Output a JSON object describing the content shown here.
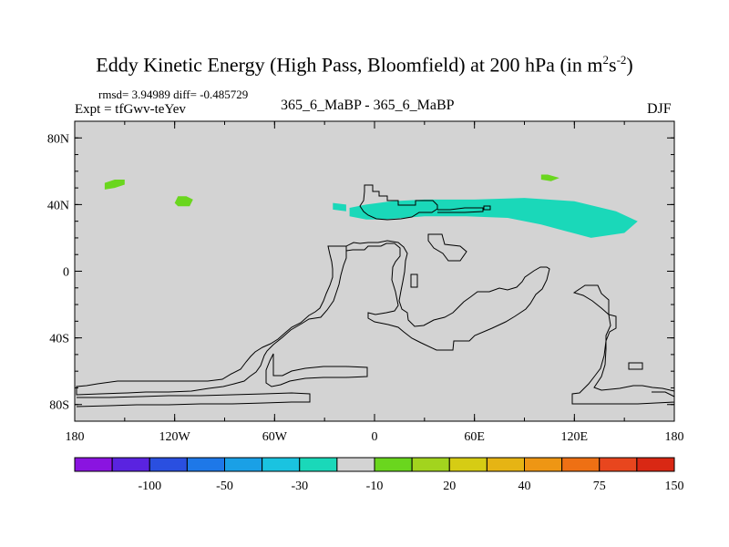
{
  "chart_data": {
    "type": "heatmap",
    "title": "Eddy Kinetic Energy (High Pass, Bloomfield) at 200 hPa (in m",
    "title_sup1": "2",
    "title_mid": "s",
    "title_sup2": "-2",
    "title_tail": ")",
    "rmsd_label": "rmsd= 3.94989 diff= -0.485729",
    "expt_label": "Expt = tfGwv-teYev",
    "case_label": "365_6_MaBP - 365_6_MaBP",
    "season": "DJF",
    "x_ticks": [
      {
        "value": -180,
        "label": "180"
      },
      {
        "value": -120,
        "label": "120W"
      },
      {
        "value": -60,
        "label": "60W"
      },
      {
        "value": 0,
        "label": "0"
      },
      {
        "value": 60,
        "label": "60E"
      },
      {
        "value": 120,
        "label": "120E"
      },
      {
        "value": 180,
        "label": "180"
      }
    ],
    "y_ticks": [
      {
        "value": 80,
        "label": "80N"
      },
      {
        "value": 40,
        "label": "40N"
      },
      {
        "value": 0,
        "label": "0"
      },
      {
        "value": -40,
        "label": "40S"
      },
      {
        "value": -80,
        "label": "80S"
      }
    ],
    "xlim": [
      -180,
      180
    ],
    "ylim": [
      -90,
      90
    ],
    "background_color": "#d3d3d3",
    "colorbar": {
      "labels": [
        "-100",
        "-50",
        "-30",
        "-10",
        "20",
        "40",
        "75",
        "150"
      ],
      "colors": [
        "#8a14e0",
        "#5a23e0",
        "#2a4fe0",
        "#1e78e8",
        "#1aa0e6",
        "#1ac3e0",
        "#1ad8b9",
        "#d3d3d3",
        "#6ad61e",
        "#a2d41e",
        "#d6cc14",
        "#e6b414",
        "#ee9614",
        "#ee7014",
        "#e8461e",
        "#d92814"
      ]
    },
    "anomalies": [
      {
        "name": "positive-small-north-pacific",
        "color": "#6ad61e",
        "points": [
          [
            -162,
            53
          ],
          [
            -156,
            55
          ],
          [
            -150,
            55
          ],
          [
            -150,
            52
          ],
          [
            -156,
            50
          ],
          [
            -162,
            49
          ]
        ]
      },
      {
        "name": "positive-small-east-pacific",
        "color": "#6ad61e",
        "points": [
          [
            -118,
            45
          ],
          [
            -113,
            45
          ],
          [
            -109,
            43
          ],
          [
            -111,
            39
          ],
          [
            -118,
            39
          ],
          [
            -120,
            41
          ]
        ]
      },
      {
        "name": "positive-small-east-asia",
        "color": "#6ad61e",
        "points": [
          [
            100,
            58
          ],
          [
            104,
            58
          ],
          [
            111,
            56
          ],
          [
            106,
            54
          ],
          [
            100,
            55
          ]
        ]
      },
      {
        "name": "negative-north-atlantic-eurasia",
        "color": "#1ad8b9",
        "points": [
          [
            -15,
            38
          ],
          [
            -5,
            40
          ],
          [
            10,
            42
          ],
          [
            30,
            43
          ],
          [
            60,
            43
          ],
          [
            90,
            44
          ],
          [
            120,
            42
          ],
          [
            145,
            36
          ],
          [
            158,
            30
          ],
          [
            150,
            23
          ],
          [
            130,
            20
          ],
          [
            115,
            24
          ],
          [
            100,
            28
          ],
          [
            80,
            32
          ],
          [
            55,
            33
          ],
          [
            30,
            33
          ],
          [
            5,
            31
          ],
          [
            -5,
            31
          ],
          [
            -15,
            33
          ]
        ]
      },
      {
        "name": "negative-small-atlantic",
        "color": "#1ad8b9",
        "points": [
          [
            -25,
            41
          ],
          [
            -17,
            40
          ],
          [
            -17,
            36
          ],
          [
            -25,
            37
          ]
        ]
      }
    ]
  }
}
